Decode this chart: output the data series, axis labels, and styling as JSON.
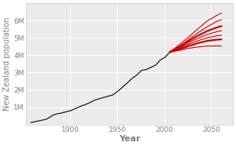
{
  "background_color": "#ebebeb",
  "outer_background": "#ffffff",
  "grid_color": "#ffffff",
  "title": "",
  "xlabel": "Year",
  "ylabel": "New Zealand population",
  "xlim": [
    1853,
    2073
  ],
  "ylim": [
    0,
    7000000
  ],
  "yticks": [
    1000000,
    2000000,
    3000000,
    4000000,
    5000000,
    6000000
  ],
  "ytick_labels": [
    "1M",
    "2M",
    "3M",
    "4M",
    "5M",
    "6M"
  ],
  "xticks": [
    1900,
    1950,
    2000,
    2050
  ],
  "historical": {
    "years": [
      1858,
      1874,
      1878,
      1881,
      1886,
      1891,
      1896,
      1901,
      1906,
      1911,
      1916,
      1921,
      1926,
      1936,
      1945,
      1951,
      1956,
      1961,
      1966,
      1971,
      1976,
      1981,
      1986,
      1991,
      1996,
      2001,
      2006
    ],
    "pop": [
      115400,
      297654,
      414412,
      534030,
      620451,
      668652,
      743214,
      815856,
      936304,
      1058313,
      1149225,
      1271664,
      1408139,
      1573812,
      1702328,
      1939472,
      2174062,
      2414984,
      2676919,
      2862631,
      3129383,
      3175737,
      3307084,
      3434950,
      3732000,
      3880518,
      4184600
    ]
  },
  "projections": [
    {
      "years": [
        2006,
        2016,
        2026,
        2036,
        2046,
        2056,
        2061
      ],
      "pop": [
        4184600,
        4510000,
        4900000,
        5300000,
        5650000,
        5950000,
        6050000
      ],
      "lw": 0.8
    },
    {
      "years": [
        2006,
        2016,
        2026,
        2036,
        2046,
        2056,
        2061
      ],
      "pop": [
        4184600,
        4600000,
        5050000,
        5530000,
        5980000,
        6300000,
        6430000
      ],
      "lw": 0.8
    },
    {
      "years": [
        2006,
        2016,
        2026,
        2036,
        2046,
        2056,
        2061
      ],
      "pop": [
        4184600,
        4480000,
        4820000,
        5130000,
        5400000,
        5600000,
        5680000
      ],
      "lw": 1.6
    },
    {
      "years": [
        2006,
        2016,
        2026,
        2036,
        2046,
        2056,
        2061
      ],
      "pop": [
        4184600,
        4420000,
        4720000,
        4980000,
        5200000,
        5360000,
        5420000
      ],
      "lw": 0.8
    },
    {
      "years": [
        2006,
        2016,
        2026,
        2036,
        2046,
        2056,
        2061
      ],
      "pop": [
        4184600,
        4380000,
        4630000,
        4840000,
        5010000,
        5120000,
        5150000
      ],
      "lw": 0.8
    },
    {
      "years": [
        2006,
        2016,
        2026,
        2036,
        2046,
        2056,
        2061
      ],
      "pop": [
        4184600,
        4340000,
        4530000,
        4700000,
        4830000,
        4900000,
        4920000
      ],
      "lw": 1.6
    },
    {
      "years": [
        2006,
        2016,
        2026,
        2036,
        2046,
        2056,
        2061
      ],
      "pop": [
        4184600,
        4280000,
        4400000,
        4480000,
        4530000,
        4540000,
        4530000
      ],
      "lw": 0.8
    }
  ],
  "line_color": "#1a1a1a",
  "proj_color": "#cc0000",
  "tick_color": "#7f7f7f",
  "tick_fontsize": 6.5,
  "label_fontsize": 8.0,
  "ylabel_fontsize": 7.0
}
